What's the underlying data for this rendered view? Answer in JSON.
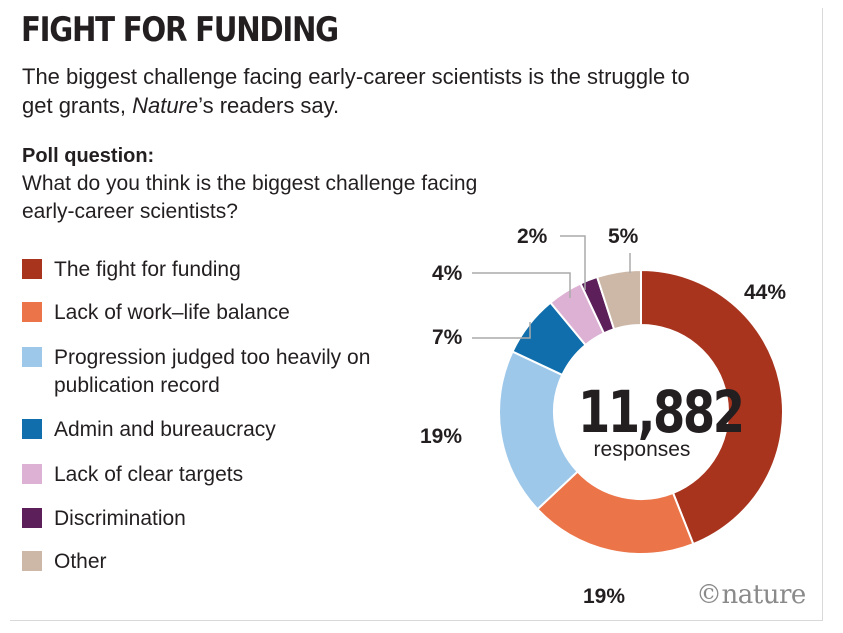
{
  "header": {
    "title": "FIGHT FOR FUNDING",
    "subtitle_pre": "The biggest challenge facing early-career scientists is the struggle to get grants, ",
    "subtitle_em": "Nature",
    "subtitle_post": "’s readers say."
  },
  "poll": {
    "label": "Poll question:",
    "text": "What do you think is the biggest challenge facing early-career scientists?"
  },
  "chart_data": {
    "type": "pie",
    "donut": true,
    "center_value": "11,882",
    "center_label": "responses",
    "categories": [
      "The fight for funding",
      "Lack of work–life balance",
      "Progression judged too heavily on publication record",
      "Admin and bureaucracy",
      "Lack of clear targets",
      "Discrimination",
      "Other"
    ],
    "values": [
      44,
      19,
      19,
      7,
      4,
      2,
      5
    ],
    "labels": [
      "44%",
      "19%",
      "19%",
      "7%",
      "4%",
      "2%",
      "5%"
    ],
    "colors": [
      "#a8341e",
      "#ec7449",
      "#9ec8ea",
      "#0f6eab",
      "#dcb1d4",
      "#5c1f5a",
      "#cdb8a8"
    ],
    "legend_position": "left"
  },
  "branding": {
    "logo": "©nature"
  }
}
